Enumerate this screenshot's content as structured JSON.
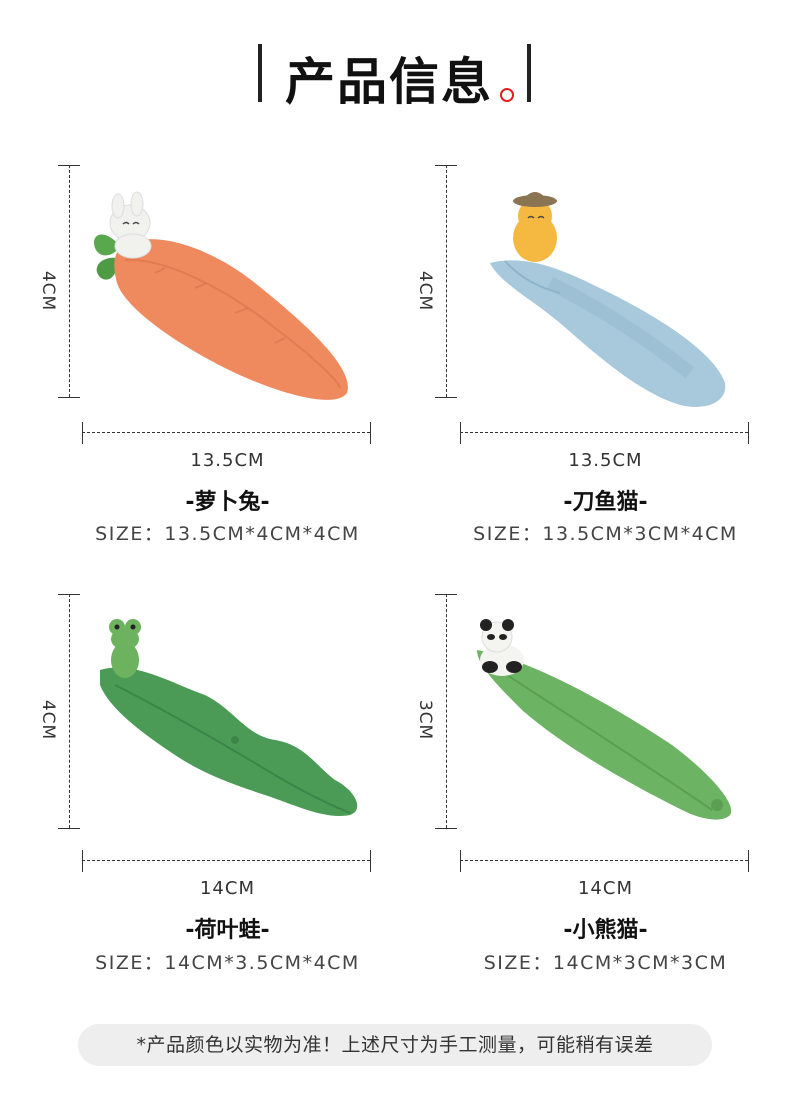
{
  "header": {
    "title": "产品信息"
  },
  "products": [
    {
      "height_label": "4CM",
      "length_label": "13.5CM",
      "name": "-萝卜兔-",
      "size": "SIZE：13.5CM*4CM*4CM"
    },
    {
      "height_label": "4CM",
      "length_label": "13.5CM",
      "name": "-刀鱼猫-",
      "size": "SIZE：13.5CM*3CM*4CM"
    },
    {
      "height_label": "4CM",
      "length_label": "14CM",
      "name": "-荷叶蛙-",
      "size": "SIZE：14CM*3.5CM*4CM"
    },
    {
      "height_label": "3CM",
      "length_label": "14CM",
      "name": "-小熊猫-",
      "size": "SIZE：14CM*3CM*3CM"
    }
  ],
  "footer": {
    "note": "*产品颜色以实物为准！上述尺寸为手工测量，可能稍有误差"
  }
}
